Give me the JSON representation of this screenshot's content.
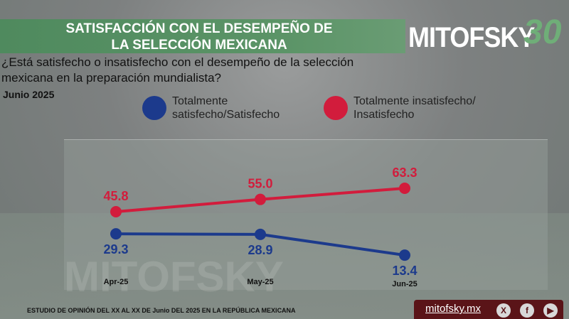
{
  "header": {
    "title_line1": "SATISFACCIÓN CON EL DESEMPEÑO DE",
    "title_line2": "LA SELECCIÓN MEXICANA",
    "logo": "MITOFSKY",
    "logo_badge": "30"
  },
  "question": "¿Está satisfecho o insatisfecho con el desempeño de la selección mexicana en la preparación mundialista?",
  "date": "Junio 2025",
  "footer": {
    "note": "ESTUDIO DE OPINIÓN DEL XX AL XX DE Junio DEL 2025 EN LA REPÚBLICA MEXICANA",
    "website": "mitofsky.mx",
    "social": [
      "x-icon",
      "facebook-icon",
      "youtube-icon"
    ]
  },
  "chart_data": {
    "type": "line",
    "title": "SATISFACCIÓN CON EL DESEMPEÑO DE LA SELECCIÓN MEXICANA",
    "categories": [
      "Apr-25",
      "May-25",
      "Jun-25"
    ],
    "series": [
      {
        "name": "Totalmente satisfecho/Satisfecho",
        "color": "#1c3a8c",
        "values": [
          29.3,
          28.9,
          13.4
        ],
        "labels": [
          "29.3",
          "28.9",
          "13.4"
        ]
      },
      {
        "name": "Totalmente insatisfecho/ Insatisfecho",
        "color": "#d21c3c",
        "values": [
          45.8,
          55.0,
          63.3
        ],
        "labels": [
          "45.8",
          "55.0",
          "63.3"
        ]
      }
    ],
    "legend": "top",
    "grid": false
  }
}
